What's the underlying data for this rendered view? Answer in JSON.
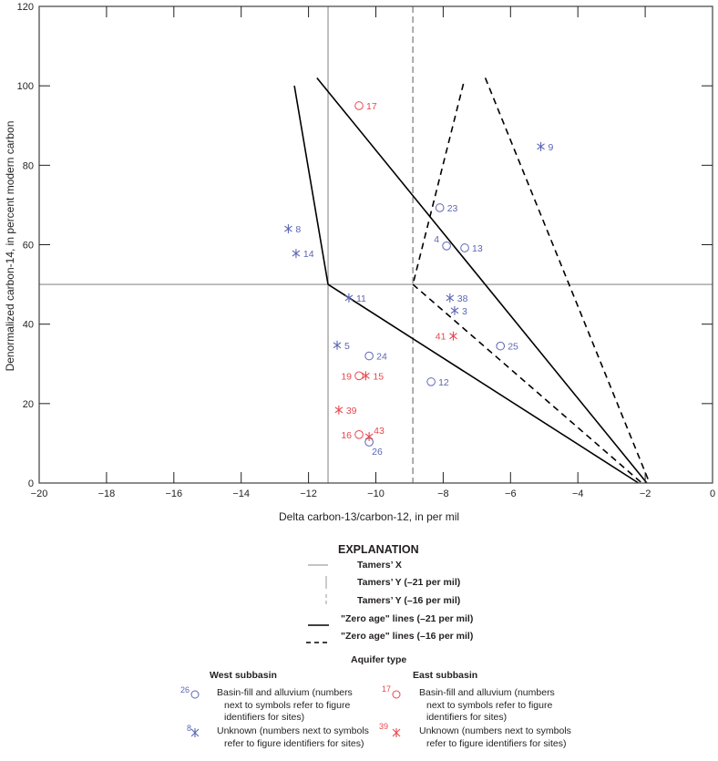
{
  "chart_data": {
    "type": "scatter",
    "title": "",
    "xlabel": "Delta carbon-13/carbon-12, in per mil",
    "ylabel": "Denormalized carbon-14, in percent modern carbon",
    "xlim": [
      -20,
      0
    ],
    "ylim": [
      0,
      120
    ],
    "x_ticks": [
      -20,
      -18,
      -16,
      -14,
      -12,
      -10,
      -8,
      -6,
      -4,
      -2,
      0
    ],
    "x_tick_labels": [
      "−20",
      "−18",
      "−16",
      "−14",
      "−12",
      "−10",
      "−8",
      "−6",
      "−4",
      "−2",
      "0"
    ],
    "y_ticks": [
      0,
      20,
      40,
      60,
      80,
      100,
      120
    ],
    "y_tick_labels": [
      "0",
      "20",
      "40",
      "60",
      "80",
      "100",
      "120"
    ],
    "grid": false,
    "reference_lines": [
      {
        "name": "Tamers' X",
        "orientation": "horizontal",
        "value": 50,
        "style": "solid-gray"
      },
      {
        "name": "Tamers' Y (−21 per mil)",
        "orientation": "vertical",
        "value": -11.42,
        "style": "solid-gray"
      },
      {
        "name": "Tamers' Y (−16 per mil)",
        "orientation": "vertical",
        "value": -8.9,
        "style": "dashed-gray"
      }
    ],
    "zero_age_lines": [
      {
        "name": "Zero age line (−21 per mil) A",
        "style": "solid",
        "points": [
          [
            -12.42,
            100
          ],
          [
            -11.42,
            50
          ]
        ]
      },
      {
        "name": "Zero age line (−21 per mil) B",
        "style": "solid",
        "points": [
          [
            -11.75,
            102
          ],
          [
            -1.95,
            0
          ]
        ]
      },
      {
        "name": "Zero age line (−21 per mil) C",
        "style": "solid",
        "points": [
          [
            -11.42,
            50
          ],
          [
            -2.2,
            0
          ]
        ]
      },
      {
        "name": "Zero age line (−16 per mil) A",
        "style": "dashed",
        "points": [
          [
            -7.4,
            100.5
          ],
          [
            -8.9,
            50
          ]
        ]
      },
      {
        "name": "Zero age line (−16 per mil) B",
        "style": "dashed",
        "points": [
          [
            -6.75,
            102
          ],
          [
            -1.87,
            0
          ]
        ]
      },
      {
        "name": "Zero age line (−16 per mil) C",
        "style": "dashed",
        "points": [
          [
            -8.9,
            50
          ],
          [
            -2.1,
            0
          ]
        ]
      }
    ],
    "series": [
      {
        "name": "West subbasin — Basin-fill and alluvium",
        "subbasin": "west",
        "aquifer": "basin-fill",
        "marker": "circle",
        "color": "#5b66b5",
        "points": [
          {
            "id": "23",
            "x": -8.1,
            "y": 69.3,
            "label_pos": "right"
          },
          {
            "id": "4",
            "x": -7.9,
            "y": 59.7,
            "label_pos": "upper-left"
          },
          {
            "id": "13",
            "x": -7.36,
            "y": 59.2,
            "label_pos": "right"
          },
          {
            "id": "24",
            "x": -10.2,
            "y": 32,
            "label_pos": "right"
          },
          {
            "id": "12",
            "x": -8.36,
            "y": 25.5,
            "label_pos": "right"
          },
          {
            "id": "25",
            "x": -6.3,
            "y": 34.5,
            "label_pos": "right"
          },
          {
            "id": "26",
            "x": -10.2,
            "y": 10.3,
            "label_pos": "below-right"
          }
        ]
      },
      {
        "name": "West subbasin — Unknown",
        "subbasin": "west",
        "aquifer": "unknown",
        "marker": "asterisk",
        "color": "#5b66b5",
        "points": [
          {
            "id": "9",
            "x": -5.1,
            "y": 84.7,
            "label_pos": "right"
          },
          {
            "id": "8",
            "x": -12.6,
            "y": 64,
            "label_pos": "right"
          },
          {
            "id": "14",
            "x": -12.37,
            "y": 57.8,
            "label_pos": "right"
          },
          {
            "id": "11",
            "x": -10.8,
            "y": 46.6,
            "label_pos": "right"
          },
          {
            "id": "38",
            "x": -7.8,
            "y": 46.6,
            "label_pos": "right"
          },
          {
            "id": "3",
            "x": -7.66,
            "y": 43.4,
            "label_pos": "right"
          },
          {
            "id": "5",
            "x": -11.15,
            "y": 34.7,
            "label_pos": "right"
          }
        ]
      },
      {
        "name": "East subbasin — Basin-fill and alluvium",
        "subbasin": "east",
        "aquifer": "basin-fill",
        "marker": "circle",
        "color": "#e9474d",
        "points": [
          {
            "id": "17",
            "x": -10.5,
            "y": 95,
            "label_pos": "right"
          },
          {
            "id": "19",
            "x": -10.5,
            "y": 27,
            "label_pos": "left"
          },
          {
            "id": "16",
            "x": -10.5,
            "y": 12.2,
            "label_pos": "left"
          }
        ]
      },
      {
        "name": "East subbasin — Unknown",
        "subbasin": "east",
        "aquifer": "unknown",
        "marker": "asterisk",
        "color": "#e9474d",
        "points": [
          {
            "id": "41",
            "x": -7.7,
            "y": 37,
            "label_pos": "left"
          },
          {
            "id": "15",
            "x": -10.3,
            "y": 27,
            "label_pos": "right"
          },
          {
            "id": "39",
            "x": -11.1,
            "y": 18.4,
            "label_pos": "right"
          },
          {
            "id": "43",
            "x": -10.2,
            "y": 11.7,
            "label_pos": "upper-right"
          }
        ]
      }
    ]
  },
  "legend": {
    "title": "EXPLANATION",
    "rows": [
      {
        "label": "Tamers’ X",
        "symbol": "gray-horizontal-line"
      },
      {
        "label": "Tamers’ Y (–21 per mil)",
        "symbol": "gray-vertical-line"
      },
      {
        "label": "Tamers’ Y (–16 per mil)",
        "symbol": "gray-dashed-vertical-line"
      },
      {
        "label": "\"Zero age\" lines (–21 per mil)",
        "symbol": "black-solid-line"
      },
      {
        "label": "\"Zero age\" lines (–16 per mil)",
        "symbol": "black-dashed-line"
      }
    ],
    "aquifer_heading": "Aquifer type",
    "west_heading": "West subbasin",
    "east_heading": "East subbasin",
    "west_basin_fill": {
      "sample_id": "26",
      "line1": "Basin-fill and alluvium (numbers",
      "line2": "next to symbols refer to figure",
      "line3": "identifiers for sites)"
    },
    "west_unknown": {
      "sample_id": "8",
      "line1": "Unknown (numbers next to symbols",
      "line2": "refer to figure identifiers for sites)"
    },
    "east_basin_fill": {
      "sample_id": "17",
      "line1": "Basin-fill and alluvium (numbers",
      "line2": "next to symbols refer to figure",
      "line3": "identifiers for sites)"
    },
    "east_unknown": {
      "sample_id": "39",
      "line1": "Unknown (numbers next to symbols",
      "line2": "refer to figure identifiers for sites)"
    },
    "colors": {
      "west": "#5b66b5",
      "east": "#e9474d"
    }
  }
}
